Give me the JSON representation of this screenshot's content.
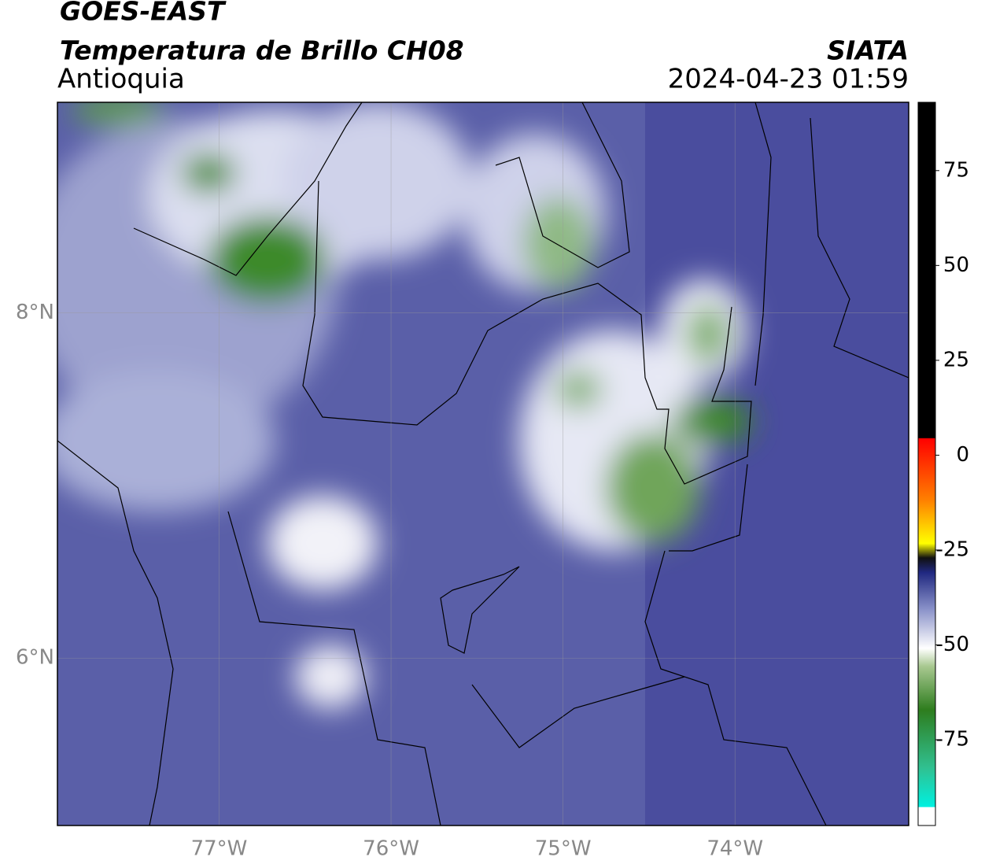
{
  "header": {
    "title": "GOES-EAST",
    "subtitle": "Temperatura de Brillo CH08",
    "region": "Antioquia",
    "source": "SIATA",
    "timestamp": "2024-04-23 01:59"
  },
  "map": {
    "lonlim": [
      -77.94,
      -72.99
    ],
    "latlim": [
      5.03,
      9.22
    ],
    "lon_ticks": [
      {
        "value": -77,
        "label": "77°W"
      },
      {
        "value": -76,
        "label": "76°W"
      },
      {
        "value": -75,
        "label": "75°W"
      },
      {
        "value": -74,
        "label": "74°W"
      }
    ],
    "lat_ticks": [
      {
        "value": 8,
        "label": "8°N"
      },
      {
        "value": 6,
        "label": "6°N"
      }
    ]
  },
  "colorbar": {
    "lim": [
      -97.6,
      93
    ],
    "ticks": [
      75,
      50,
      25,
      0,
      -25,
      -50,
      -75
    ]
  }
}
